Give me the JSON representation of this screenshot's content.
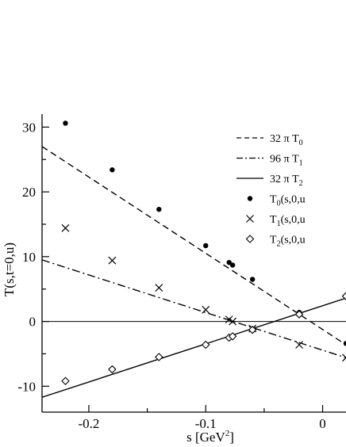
{
  "chart_data": {
    "type": "scatter",
    "xlabel": "s  [GeV",
    "xlabel_sup": "2",
    "xlabel_close": "]",
    "ylabel": "T(s,t=0,u)",
    "xlim": [
      -0.24,
      0.02
    ],
    "ylim": [
      -14,
      32
    ],
    "x_ticks": [
      -0.2,
      -0.1,
      0
    ],
    "x_tick_labels": [
      "-0.2",
      "-0.1",
      "0"
    ],
    "y_ticks": [
      -10,
      0,
      10,
      20,
      30
    ],
    "y_tick_labels": [
      "-10",
      "0",
      "10",
      "20",
      "30"
    ],
    "zero_line": true,
    "legend_position": "top-right",
    "series": [
      {
        "name": "32 π T_0",
        "legend_main": "32 π T",
        "legend_sub": "0",
        "kind": "line",
        "dash": "dashed",
        "x": [
          -0.24,
          0.02
        ],
        "y": [
          27,
          -3.6
        ]
      },
      {
        "name": "96 π T_1",
        "legend_main": "96 π T",
        "legend_sub": "1",
        "kind": "line",
        "dash": "dashdot",
        "x": [
          -0.24,
          0.02
        ],
        "y": [
          9.5,
          -5.6
        ]
      },
      {
        "name": "32 π T_2",
        "legend_main": "32 π T",
        "legend_sub": "2",
        "kind": "line",
        "dash": "solid",
        "x": [
          -0.24,
          0.02
        ],
        "y": [
          -11.7,
          3.6
        ]
      },
      {
        "name": "T_0(s,0,u",
        "legend_main": "T",
        "legend_sub": "0",
        "legend_rest": "(s,0,u",
        "kind": "points",
        "marker": "dot",
        "x": [
          -0.22,
          -0.18,
          -0.14,
          -0.1,
          -0.08,
          -0.077,
          -0.06,
          -0.02,
          0.02
        ],
        "y": [
          30.6,
          23.4,
          17.3,
          11.7,
          9.1,
          8.7,
          6.5,
          1.4,
          -3.4
        ]
      },
      {
        "name": "T_1(s,0,u",
        "legend_main": "T",
        "legend_sub": "1",
        "legend_rest": "(s,0,u",
        "kind": "points",
        "marker": "cross",
        "x": [
          -0.22,
          -0.18,
          -0.14,
          -0.1,
          -0.08,
          -0.077,
          -0.06,
          -0.02,
          0.02
        ],
        "y": [
          14.4,
          9.4,
          5.2,
          1.8,
          0.3,
          0.0,
          -1.1,
          -3.6,
          -5.6
        ]
      },
      {
        "name": "T_2(s,0,u",
        "legend_main": "T",
        "legend_sub": "2",
        "legend_rest": "(s,0,u",
        "kind": "points",
        "marker": "diamond",
        "x": [
          -0.22,
          -0.18,
          -0.14,
          -0.1,
          -0.08,
          -0.077,
          -0.06,
          -0.02,
          0.02
        ],
        "y": [
          -9.2,
          -7.4,
          -5.5,
          -3.6,
          -2.5,
          -2.3,
          -1.3,
          1.1,
          3.9
        ]
      }
    ]
  }
}
